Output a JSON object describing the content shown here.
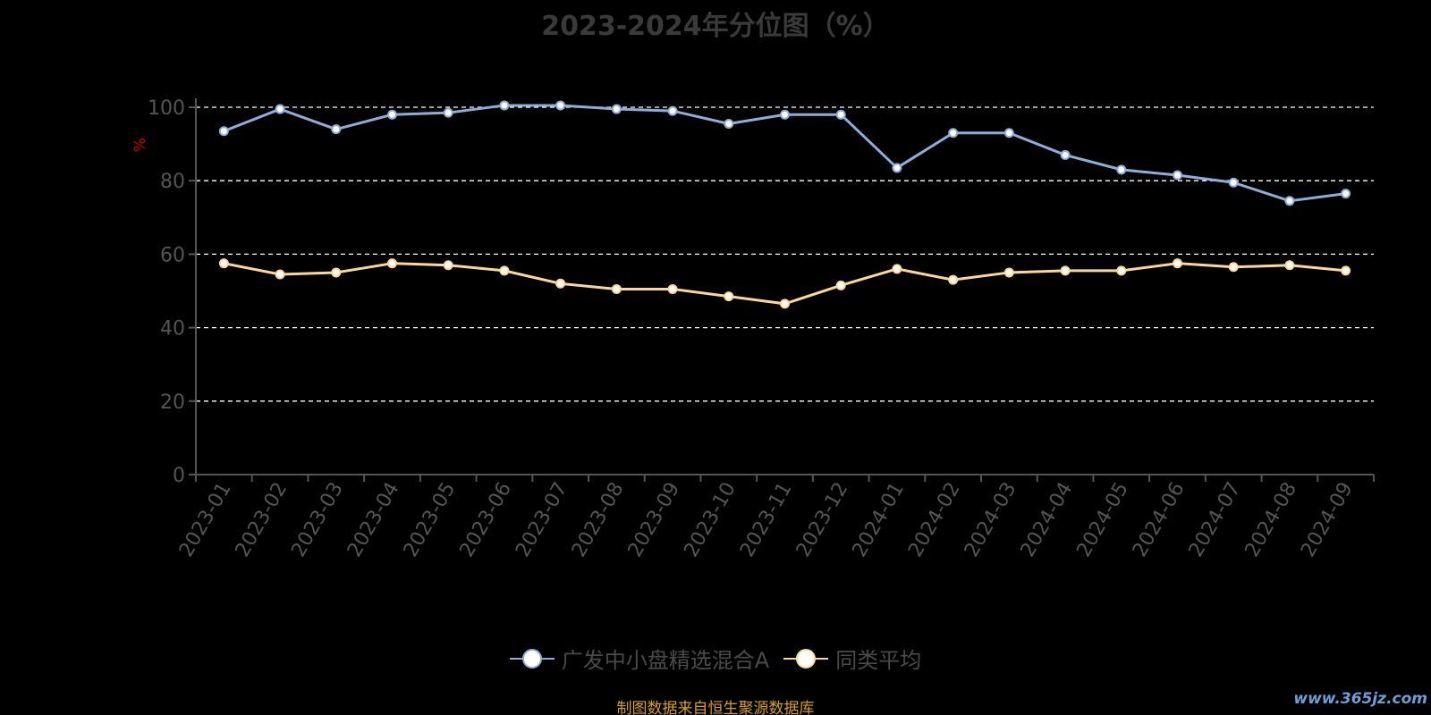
{
  "chart_data": {
    "type": "line",
    "title": "2023-2024年分位图（%）",
    "ylabel": "%",
    "xlabel": "",
    "ylim": [
      0,
      100
    ],
    "yticks": [
      0,
      20,
      40,
      60,
      80,
      100
    ],
    "grid": true,
    "legend_position": "bottom",
    "categories": [
      "2023-01",
      "2023-02",
      "2023-03",
      "2023-04",
      "2023-05",
      "2023-06",
      "2023-07",
      "2023-08",
      "2023-09",
      "2023-10",
      "2023-11",
      "2023-12",
      "2024-01",
      "2024-02",
      "2024-03",
      "2024-04",
      "2024-05",
      "2024-06",
      "2024-07",
      "2024-08",
      "2024-09"
    ],
    "series": [
      {
        "name": "广发中小盘精选混合A",
        "color": "#8eadd8",
        "values": [
          93.5,
          99.5,
          94,
          98,
          98.5,
          100.5,
          100.5,
          99.5,
          99,
          95.5,
          98,
          98,
          83.5,
          93,
          93,
          87,
          83,
          81.5,
          79.5,
          74.5,
          76.5
        ]
      },
      {
        "name": "同类平均",
        "color": "#fbd89a",
        "values": [
          57.5,
          54.5,
          55,
          57.5,
          57,
          55.5,
          52,
          50.5,
          50.5,
          48.5,
          46.5,
          51.5,
          56,
          53,
          55,
          55.5,
          55.5,
          57.5,
          56.5,
          57,
          55.5
        ]
      }
    ]
  },
  "footer": {
    "source": "制图数据来自恒生聚源数据库",
    "watermark": "www.365jz.com"
  },
  "colors": {
    "background": "#000000",
    "axis": "#555555",
    "tick_label": "#555555",
    "grid": "#ffffff",
    "ylabel": "#cc0000",
    "source": "#d4a017"
  }
}
